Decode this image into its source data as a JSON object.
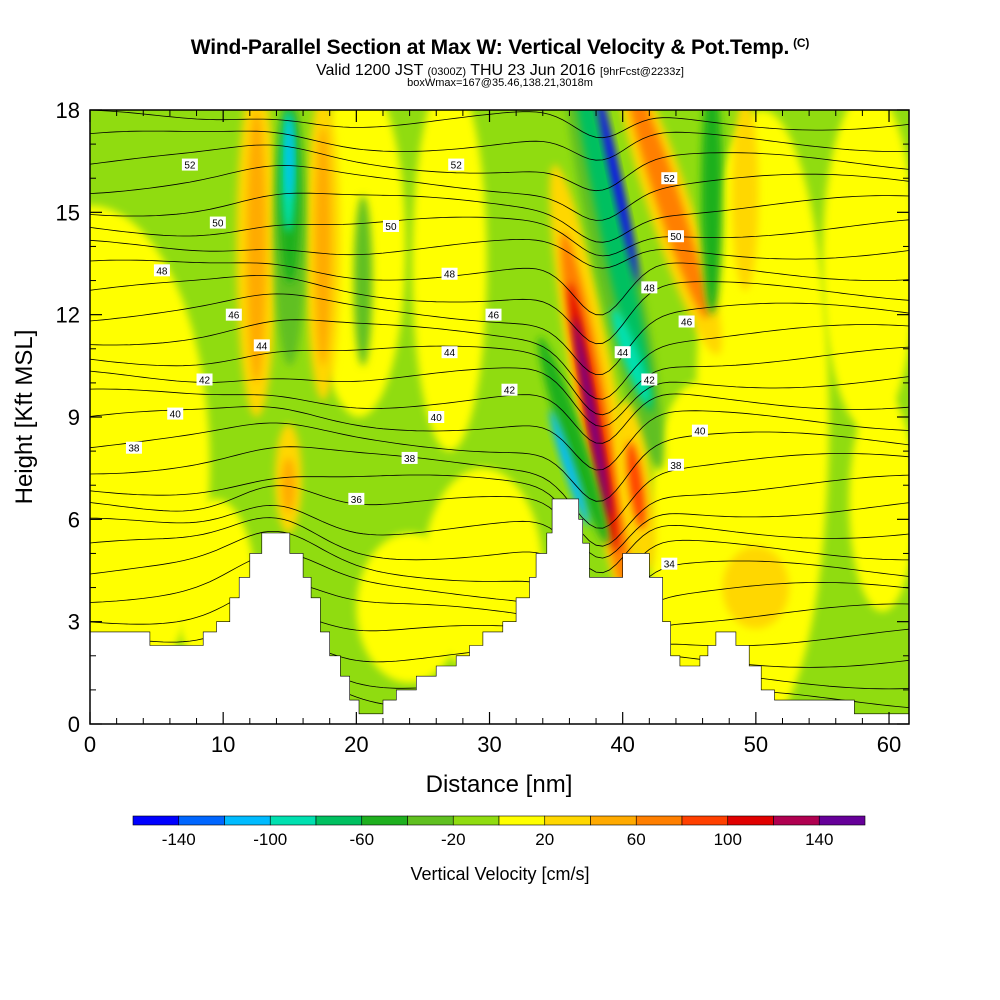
{
  "header": {
    "title": "Wind-Parallel Section at Max W: Vertical Velocity & Pot.Temp.",
    "copyright": "(C)",
    "valid_prefix": "Valid 1200 JST",
    "valid_utc": "(0300Z)",
    "valid_date": "THU 23 Jun 2016",
    "forecast": "[9hrFcst@2233z]",
    "box_info": "boxWmax=167@35.46,138.21,3018m"
  },
  "chart_data": {
    "type": "heatmap",
    "xlabel": "Distance [nm]",
    "ylabel": "Height [Kft MSL]",
    "xlim": [
      0,
      61.5
    ],
    "ylim": [
      0,
      18
    ],
    "x_ticks": [
      "0",
      "10",
      "20",
      "30",
      "40",
      "50",
      "60"
    ],
    "y_ticks": [
      "0",
      "3",
      "6",
      "9",
      "12",
      "15",
      "18"
    ],
    "colorbar": {
      "label": "Vertical Velocity [cm/s]",
      "tick_labels": [
        "-140",
        "-100",
        "-60",
        "-20",
        "20",
        "60",
        "100",
        "140"
      ],
      "levels": [
        -160,
        -140,
        -120,
        -100,
        -80,
        -60,
        -40,
        -20,
        0,
        20,
        40,
        60,
        80,
        100,
        120,
        140,
        160
      ],
      "colors": [
        "#0000ff",
        "#0066ff",
        "#00bbff",
        "#00e0b0",
        "#00c060",
        "#1fb01f",
        "#60c020",
        "#90dc10",
        "#ffff00",
        "#ffd700",
        "#ffaa00",
        "#ff7f00",
        "#ff4000",
        "#e00000",
        "#b00050",
        "#660099"
      ]
    },
    "terrain_kft": [
      [
        0,
        2.7
      ],
      [
        4.5,
        2.7
      ],
      [
        4.5,
        2.3
      ],
      [
        8.5,
        2.3
      ],
      [
        8.5,
        2.7
      ],
      [
        9.5,
        2.7
      ],
      [
        9.5,
        3.0
      ],
      [
        10.5,
        3.0
      ],
      [
        10.5,
        3.7
      ],
      [
        11.2,
        3.7
      ],
      [
        11.2,
        4.3
      ],
      [
        12.0,
        4.3
      ],
      [
        12.0,
        5.0
      ],
      [
        12.9,
        5.0
      ],
      [
        12.9,
        5.6
      ],
      [
        15.0,
        5.6
      ],
      [
        15.0,
        5.0
      ],
      [
        16.0,
        5.0
      ],
      [
        16.0,
        4.3
      ],
      [
        16.6,
        4.3
      ],
      [
        16.6,
        3.7
      ],
      [
        17.3,
        3.7
      ],
      [
        17.3,
        2.7
      ],
      [
        18.0,
        2.7
      ],
      [
        18.0,
        2.0
      ],
      [
        18.8,
        2.0
      ],
      [
        18.8,
        1.4
      ],
      [
        19.5,
        1.4
      ],
      [
        19.5,
        0.7
      ],
      [
        20.2,
        0.7
      ],
      [
        20.2,
        0.3
      ],
      [
        22.0,
        0.3
      ],
      [
        22.0,
        0.7
      ],
      [
        23.0,
        0.7
      ],
      [
        23.0,
        1.0
      ],
      [
        24.5,
        1.0
      ],
      [
        24.5,
        1.4
      ],
      [
        26.0,
        1.4
      ],
      [
        26.0,
        1.7
      ],
      [
        27.5,
        1.7
      ],
      [
        27.5,
        2.0
      ],
      [
        28.5,
        2.0
      ],
      [
        28.5,
        2.3
      ],
      [
        29.5,
        2.3
      ],
      [
        29.5,
        2.7
      ],
      [
        31.0,
        2.7
      ],
      [
        31.0,
        3.0
      ],
      [
        32.0,
        3.0
      ],
      [
        32.0,
        3.7
      ],
      [
        33.0,
        3.7
      ],
      [
        33.0,
        4.3
      ],
      [
        33.5,
        4.3
      ],
      [
        33.5,
        5.0
      ],
      [
        34.3,
        5.0
      ],
      [
        34.3,
        5.6
      ],
      [
        34.7,
        5.6
      ],
      [
        34.7,
        6.6
      ],
      [
        36.7,
        6.6
      ],
      [
        36.7,
        6.0
      ],
      [
        37.0,
        6.0
      ],
      [
        37.0,
        5.3
      ],
      [
        37.5,
        5.3
      ],
      [
        37.5,
        4.3
      ],
      [
        40.0,
        4.3
      ],
      [
        40.0,
        5.0
      ],
      [
        42.0,
        5.0
      ],
      [
        42.0,
        4.3
      ],
      [
        43.0,
        4.3
      ],
      [
        43.0,
        3.0
      ],
      [
        43.6,
        3.0
      ],
      [
        43.6,
        2.0
      ],
      [
        44.3,
        2.0
      ],
      [
        44.3,
        1.7
      ],
      [
        45.8,
        1.7
      ],
      [
        45.8,
        2.0
      ],
      [
        46.4,
        2.0
      ],
      [
        46.4,
        2.3
      ],
      [
        47.0,
        2.3
      ],
      [
        47.0,
        2.7
      ],
      [
        48.5,
        2.7
      ],
      [
        48.5,
        2.3
      ],
      [
        49.5,
        2.3
      ],
      [
        49.5,
        1.7
      ],
      [
        50.4,
        1.7
      ],
      [
        50.4,
        1.0
      ],
      [
        51.4,
        1.0
      ],
      [
        51.4,
        0.7
      ],
      [
        57.4,
        0.7
      ],
      [
        57.4,
        0.3
      ],
      [
        61.5,
        0.3
      ],
      [
        61.5,
        0
      ],
      [
        0,
        0
      ]
    ],
    "contours": {
      "variable": "Pot.Temp.",
      "labels": [
        {
          "v": "52",
          "x": 7.5,
          "y": 16.4
        },
        {
          "v": "52",
          "x": 27.5,
          "y": 16.4
        },
        {
          "v": "52",
          "x": 43.5,
          "y": 16.0
        },
        {
          "v": "50",
          "x": 9.6,
          "y": 14.7
        },
        {
          "v": "50",
          "x": 22.6,
          "y": 14.6
        },
        {
          "v": "50",
          "x": 44.0,
          "y": 14.3
        },
        {
          "v": "48",
          "x": 5.4,
          "y": 13.3
        },
        {
          "v": "48",
          "x": 27.0,
          "y": 13.2
        },
        {
          "v": "48",
          "x": 42.0,
          "y": 12.8
        },
        {
          "v": "46",
          "x": 10.8,
          "y": 12.0
        },
        {
          "v": "46",
          "x": 30.3,
          "y": 12.0
        },
        {
          "v": "46",
          "x": 44.8,
          "y": 11.8
        },
        {
          "v": "44",
          "x": 12.9,
          "y": 11.1
        },
        {
          "v": "44",
          "x": 27.0,
          "y": 10.9
        },
        {
          "v": "44",
          "x": 40.0,
          "y": 10.9
        },
        {
          "v": "42",
          "x": 8.6,
          "y": 10.1
        },
        {
          "v": "42",
          "x": 31.5,
          "y": 9.8
        },
        {
          "v": "42",
          "x": 42.0,
          "y": 10.1
        },
        {
          "v": "40",
          "x": 6.4,
          "y": 9.1
        },
        {
          "v": "40",
          "x": 26.0,
          "y": 9.0
        },
        {
          "v": "40",
          "x": 45.8,
          "y": 8.6
        },
        {
          "v": "38",
          "x": 3.3,
          "y": 8.1
        },
        {
          "v": "38",
          "x": 24.0,
          "y": 7.8
        },
        {
          "v": "38",
          "x": 44.0,
          "y": 7.6
        },
        {
          "v": "36",
          "x": 20.0,
          "y": 6.6
        },
        {
          "v": "34",
          "x": 43.5,
          "y": 4.7
        }
      ]
    }
  }
}
